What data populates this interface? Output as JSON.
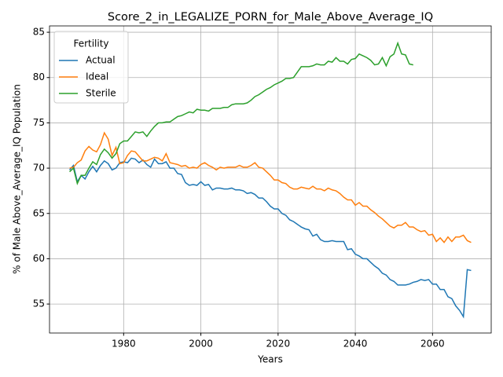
{
  "chart_data": {
    "type": "line",
    "title": "Score_2_in_LEGALIZE_PORN_for_Male_Above_Average_IQ",
    "xlabel": "Years",
    "ylabel": "% of Male Above_Average_IQ Population",
    "legend_title": "Fertility",
    "legend_loc": "upper left",
    "grid": true,
    "xlim": [
      1960.8,
      2075.2
    ],
    "ylim": [
      51.8,
      85.7
    ],
    "xticks": [
      1980,
      2000,
      2020,
      2040,
      2060
    ],
    "yticks": [
      55,
      60,
      65,
      70,
      75,
      80,
      85
    ],
    "x": [
      1966,
      1967,
      1968,
      1969,
      1970,
      1971,
      1972,
      1973,
      1974,
      1975,
      1976,
      1977,
      1978,
      1979,
      1980,
      1981,
      1982,
      1983,
      1984,
      1985,
      1986,
      1987,
      1988,
      1989,
      1990,
      1991,
      1992,
      1993,
      1994,
      1995,
      1996,
      1997,
      1998,
      1999,
      2000,
      2001,
      2002,
      2003,
      2004,
      2005,
      2006,
      2007,
      2008,
      2009,
      2010,
      2011,
      2012,
      2013,
      2014,
      2015,
      2016,
      2017,
      2018,
      2019,
      2020,
      2021,
      2022,
      2023,
      2024,
      2025,
      2026,
      2027,
      2028,
      2029,
      2030,
      2031,
      2032,
      2033,
      2034,
      2035,
      2036,
      2037,
      2038,
      2039,
      2040,
      2041,
      2042,
      2043,
      2044,
      2045,
      2046,
      2047,
      2048,
      2049,
      2050,
      2051,
      2052,
      2053,
      2054,
      2055,
      2056,
      2057,
      2058,
      2059,
      2060,
      2061,
      2062,
      2063,
      2064,
      2065,
      2066,
      2067,
      2068,
      2069,
      2070
    ],
    "series": [
      {
        "name": "Actual",
        "color": "#1f77b4",
        "values": [
          69.8,
          70.3,
          68.5,
          69.2,
          68.8,
          69.6,
          70.2,
          69.6,
          70.3,
          70.8,
          70.5,
          69.8,
          70.0,
          70.6,
          70.7,
          70.6,
          71.1,
          71.0,
          70.6,
          70.9,
          70.4,
          70.1,
          71.0,
          70.5,
          70.5,
          70.7,
          70.0,
          70.0,
          69.4,
          69.3,
          68.4,
          68.1,
          68.2,
          68.1,
          68.5,
          68.1,
          68.2,
          67.6,
          67.8,
          67.8,
          67.7,
          67.7,
          67.8,
          67.6,
          67.6,
          67.5,
          67.2,
          67.3,
          67.1,
          66.7,
          66.7,
          66.3,
          65.8,
          65.5,
          65.5,
          65.0,
          64.8,
          64.3,
          64.1,
          63.8,
          63.5,
          63.3,
          63.2,
          62.5,
          62.7,
          62.1,
          61.9,
          61.9,
          62.0,
          61.9,
          61.9,
          61.9,
          61.0,
          61.1,
          60.5,
          60.3,
          60.0,
          60.0,
          59.6,
          59.2,
          58.9,
          58.4,
          58.2,
          57.7,
          57.5,
          57.1,
          57.1,
          57.1,
          57.2,
          57.4,
          57.5,
          57.7,
          57.6,
          57.7,
          57.2,
          57.2,
          56.6,
          56.6,
          55.8,
          55.6,
          54.8,
          54.3,
          53.6,
          58.8,
          58.7
        ]
      },
      {
        "name": "Ideal",
        "color": "#ff7f0e",
        "values": [
          70.0,
          70.1,
          70.6,
          70.9,
          71.9,
          72.4,
          72.0,
          71.8,
          72.6,
          73.9,
          73.2,
          71.4,
          72.3,
          70.5,
          70.6,
          71.4,
          71.9,
          71.8,
          71.3,
          70.8,
          70.8,
          71.0,
          71.2,
          71.1,
          70.8,
          71.6,
          70.6,
          70.5,
          70.4,
          70.2,
          70.3,
          70.0,
          70.1,
          70.0,
          70.4,
          70.6,
          70.3,
          70.1,
          69.8,
          70.1,
          70.0,
          70.1,
          70.1,
          70.1,
          70.3,
          70.1,
          70.1,
          70.3,
          70.6,
          70.1,
          70.0,
          69.6,
          69.2,
          68.7,
          68.7,
          68.4,
          68.3,
          67.9,
          67.7,
          67.7,
          67.9,
          67.8,
          67.7,
          68.0,
          67.7,
          67.7,
          67.5,
          67.8,
          67.6,
          67.5,
          67.2,
          66.8,
          66.5,
          66.5,
          65.9,
          66.2,
          65.8,
          65.8,
          65.4,
          65.1,
          64.7,
          64.4,
          64.0,
          63.6,
          63.4,
          63.7,
          63.7,
          64.0,
          63.5,
          63.5,
          63.2,
          63.0,
          63.1,
          62.6,
          62.7,
          61.9,
          62.3,
          61.8,
          62.4,
          61.9,
          62.4,
          62.4,
          62.6,
          62.0,
          61.8
        ]
      },
      {
        "name": "Sterile",
        "color": "#2ca02c",
        "values": [
          69.6,
          70.0,
          68.3,
          69.2,
          69.2,
          70.0,
          70.7,
          70.4,
          71.5,
          72.1,
          71.7,
          71.1,
          71.6,
          72.7,
          73.0,
          73.0,
          73.5,
          74.0,
          73.9,
          74.0,
          73.5,
          74.1,
          74.6,
          75.0,
          75.0,
          75.1,
          75.1,
          75.4,
          75.7,
          75.8,
          76.0,
          76.2,
          76.1,
          76.5,
          76.4,
          76.4,
          76.3,
          76.6,
          76.6,
          76.6,
          76.7,
          76.7,
          77.0,
          77.1,
          77.1,
          77.1,
          77.2,
          77.5,
          77.9,
          78.1,
          78.4,
          78.7,
          78.9,
          79.2,
          79.4,
          79.6,
          79.9,
          79.9,
          80.0,
          80.6,
          81.2,
          81.2,
          81.2,
          81.3,
          81.5,
          81.4,
          81.4,
          81.8,
          81.7,
          82.2,
          81.8,
          81.8,
          81.5,
          82.0,
          82.1,
          82.6,
          82.4,
          82.2,
          81.9,
          81.4,
          81.5,
          82.2,
          81.3,
          82.3,
          82.6,
          83.8,
          82.6,
          82.5,
          81.5,
          81.4,
          null,
          null,
          null,
          null,
          null,
          null,
          null,
          null,
          null,
          null,
          null,
          null,
          null,
          null,
          null
        ]
      }
    ]
  }
}
